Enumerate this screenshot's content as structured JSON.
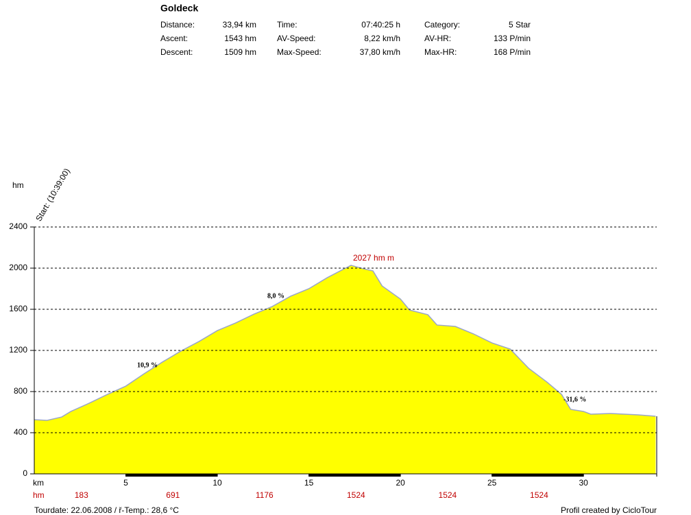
{
  "header": {
    "title": "Goldeck",
    "stats": [
      [
        {
          "label": "Distance:",
          "value": "33,94 km"
        },
        {
          "label": "Time:",
          "value": "07:40:25 h"
        },
        {
          "label": "Category:",
          "value": "5 Star"
        }
      ],
      [
        {
          "label": "Ascent:",
          "value": "1543 hm"
        },
        {
          "label": "AV-Speed:",
          "value": "8,22 km/h"
        },
        {
          "label": "AV-HR:",
          "value": "133 P/min"
        }
      ],
      [
        {
          "label": "Descent:",
          "value": "1509 hm"
        },
        {
          "label": "Max-Speed:",
          "value": "37,80 km/h"
        },
        {
          "label": "Max-HR:",
          "value": "168 P/min"
        }
      ]
    ]
  },
  "chart_data": {
    "type": "area",
    "y_label": "hm",
    "x_label": "km",
    "start_label": "Start: (10:39:00)",
    "x": [
      0,
      0.7,
      1.5,
      2,
      3,
      4,
      5,
      6,
      7,
      8,
      9,
      10,
      11,
      12,
      13,
      14,
      15,
      16,
      17,
      17.3,
      18,
      18.5,
      19,
      20,
      20.5,
      21.5,
      22,
      23,
      24,
      25,
      26,
      27,
      28,
      28.8,
      29.3,
      30,
      30.4,
      31.5,
      33,
      33.94
    ],
    "values": [
      527,
      520,
      553,
      607,
      687,
      773,
      853,
      973,
      1087,
      1193,
      1287,
      1393,
      1467,
      1553,
      1627,
      1727,
      1800,
      1907,
      2000,
      2027,
      1993,
      1973,
      1827,
      1700,
      1593,
      1547,
      1447,
      1433,
      1360,
      1273,
      1213,
      1027,
      893,
      773,
      627,
      607,
      580,
      587,
      573,
      560
    ],
    "color": "#ffff00",
    "line_color": "#9aa6c8",
    "xlim": [
      0,
      34
    ],
    "xticks": [
      5,
      10,
      15,
      20,
      25,
      30
    ],
    "ylim": [
      0,
      2400
    ],
    "yticks": [
      0,
      400,
      800,
      1200,
      1600,
      2000,
      2400
    ],
    "grid": true,
    "annotations": [
      "10,9 %",
      "8,0 %",
      "2027 hm m",
      "-31,6 %"
    ],
    "segment_label": "hm",
    "segment_heights": [
      183,
      691,
      1176,
      1524,
      1524,
      1524
    ],
    "footer_left": "Tourdate: 22.06.2008  /  ř-Temp.: 28,6 °C",
    "footer_right": "Profil created by CicloTour"
  }
}
